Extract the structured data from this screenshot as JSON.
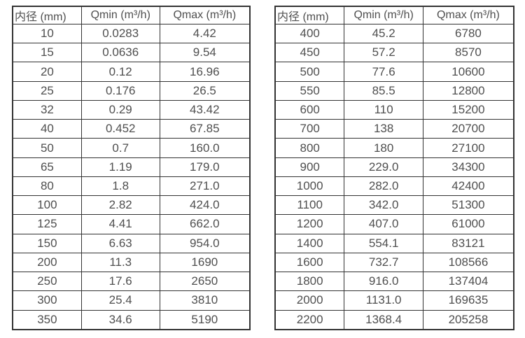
{
  "table_left": {
    "headers": [
      "内径 (mm)",
      "Qmin (m³/h)",
      "Qmax (m³/h)"
    ],
    "rows": [
      [
        "10",
        "0.0283",
        "4.42"
      ],
      [
        "15",
        "0.0636",
        "9.54"
      ],
      [
        "20",
        "0.12",
        "16.96"
      ],
      [
        "25",
        "0.176",
        "26.5"
      ],
      [
        "32",
        "0.29",
        "43.42"
      ],
      [
        "40",
        "0.452",
        "67.85"
      ],
      [
        "50",
        "0.7",
        "160.0"
      ],
      [
        "65",
        "1.19",
        "179.0"
      ],
      [
        "80",
        "1.8",
        "271.0"
      ],
      [
        "100",
        "2.82",
        "424.0"
      ],
      [
        "125",
        "4.41",
        "662.0"
      ],
      [
        "150",
        "6.63",
        "954.0"
      ],
      [
        "200",
        "11.3",
        "1690"
      ],
      [
        "250",
        "17.6",
        "2650"
      ],
      [
        "300",
        "25.4",
        "3810"
      ],
      [
        "350",
        "34.6",
        "5190"
      ]
    ]
  },
  "table_right": {
    "headers": [
      "内径 (mm)",
      "Qmin (m³/h)",
      "Qmax (m³/h)"
    ],
    "rows": [
      [
        "400",
        "45.2",
        "6780"
      ],
      [
        "450",
        "57.2",
        "8570"
      ],
      [
        "500",
        "77.6",
        "10600"
      ],
      [
        "550",
        "85.5",
        "12800"
      ],
      [
        "600",
        "110",
        "15200"
      ],
      [
        "700",
        "138",
        "20700"
      ],
      [
        "800",
        "180",
        "27100"
      ],
      [
        "900",
        "229.0",
        "34300"
      ],
      [
        "1000",
        "282.0",
        "42400"
      ],
      [
        "1100",
        "342.0",
        "51300"
      ],
      [
        "1200",
        "407.0",
        "61000"
      ],
      [
        "1400",
        "554.1",
        "83121"
      ],
      [
        "1600",
        "732.7",
        "108566"
      ],
      [
        "1800",
        "916.0",
        "137404"
      ],
      [
        "2000",
        "1131.0",
        "169635"
      ],
      [
        "2200",
        "1368.4",
        "205258"
      ]
    ]
  },
  "colors": {
    "border": "#333333",
    "text": "#4f4f4f",
    "background": "#ffffff"
  }
}
